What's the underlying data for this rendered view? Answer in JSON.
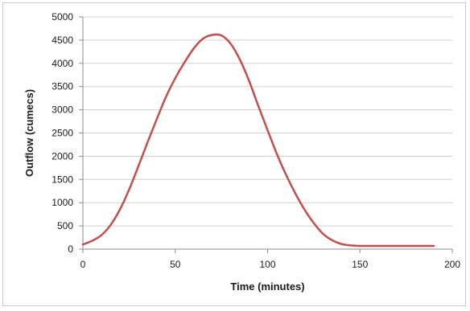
{
  "chart_data": {
    "type": "line",
    "title": "",
    "xlabel": "Time (minutes)",
    "ylabel": "Outflow (cumecs)",
    "xlim": [
      0,
      200
    ],
    "ylim": [
      0,
      5000
    ],
    "xticks": [
      0,
      50,
      100,
      150,
      200
    ],
    "yticks": [
      0,
      500,
      1000,
      1500,
      2000,
      2500,
      3000,
      3500,
      4000,
      4500,
      5000
    ],
    "grid": "horizontal",
    "legend": "none",
    "series": [
      {
        "color": "#c0504d",
        "x": [
          0,
          5,
          10,
          15,
          20,
          25,
          30,
          35,
          40,
          45,
          50,
          55,
          60,
          65,
          70,
          75,
          80,
          85,
          90,
          95,
          100,
          105,
          110,
          115,
          120,
          125,
          130,
          135,
          140,
          145,
          150,
          155,
          160,
          170,
          180,
          190
        ],
        "y": [
          100,
          180,
          300,
          520,
          850,
          1280,
          1780,
          2300,
          2800,
          3280,
          3680,
          4020,
          4320,
          4530,
          4610,
          4600,
          4420,
          4080,
          3620,
          3080,
          2560,
          2050,
          1600,
          1200,
          850,
          560,
          330,
          190,
          110,
          80,
          70,
          70,
          70,
          70,
          70,
          70
        ]
      }
    ]
  }
}
